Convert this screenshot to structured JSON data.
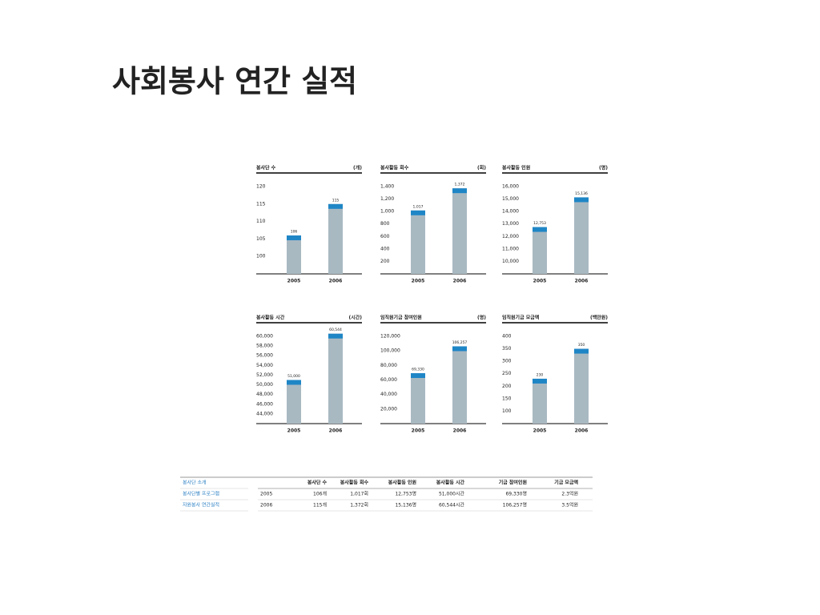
{
  "title": "사회봉사 연간 실적",
  "chart_data": [
    {
      "type": "bar",
      "title": "봉사단 수",
      "unit": "(개)",
      "categories": [
        "2005",
        "2006"
      ],
      "values": [
        106,
        115
      ],
      "ylim": [
        95,
        120
      ],
      "yticks": [
        100,
        105,
        110,
        115,
        120
      ],
      "color": "#a9b9c2",
      "cap_color": "#1f86c6"
    },
    {
      "type": "bar",
      "title": "봉사활동 회수",
      "unit": "(회)",
      "categories": [
        "2005",
        "2006"
      ],
      "values": [
        1017,
        1372
      ],
      "value_labels": [
        "1,017",
        "1,372"
      ],
      "ylim": [
        0,
        1400
      ],
      "yticks": [
        200,
        400,
        600,
        800,
        {
          "value": 1000,
          "label": "1,000"
        },
        {
          "value": 1200,
          "label": "1,200"
        },
        {
          "value": 1400,
          "label": "1,400"
        }
      ],
      "color": "#a9b9c2",
      "cap_color": "#1f86c6"
    },
    {
      "type": "bar",
      "title": "봉사활동 인원",
      "unit": "(명)",
      "categories": [
        "2005",
        "2006"
      ],
      "values": [
        12753,
        15136
      ],
      "value_labels": [
        "12,753",
        "15,136"
      ],
      "ylim": [
        9000,
        16000
      ],
      "yticks": [
        {
          "value": 10000,
          "label": "10,000"
        },
        {
          "value": 11000,
          "label": "11,000"
        },
        {
          "value": 12000,
          "label": "12,000"
        },
        {
          "value": 13000,
          "label": "13,000"
        },
        {
          "value": 14000,
          "label": "14,000"
        },
        {
          "value": 15000,
          "label": "15,000"
        },
        {
          "value": 16000,
          "label": "16,000"
        }
      ],
      "color": "#a9b9c2",
      "cap_color": "#1f86c6"
    },
    {
      "type": "bar",
      "title": "봉사활동 시간",
      "unit": "(시간)",
      "categories": [
        "2005",
        "2006"
      ],
      "values": [
        51000,
        60544
      ],
      "value_labels": [
        "51,000",
        "60,544"
      ],
      "ylim": [
        42000,
        60000
      ],
      "yticks": [
        {
          "value": 44000,
          "label": "44,000"
        },
        {
          "value": 46000,
          "label": "46,000"
        },
        {
          "value": 48000,
          "label": "48,000"
        },
        {
          "value": 50000,
          "label": "50,000"
        },
        {
          "value": 52000,
          "label": "52,000"
        },
        {
          "value": 54000,
          "label": "54,000"
        },
        {
          "value": 56000,
          "label": "56,000"
        },
        {
          "value": 58000,
          "label": "58,000"
        },
        {
          "value": 60000,
          "label": "60,000"
        }
      ],
      "color": "#a9b9c2",
      "cap_color": "#1f86c6"
    },
    {
      "type": "bar",
      "title": "임직원기금 참여인원",
      "unit": "(명)",
      "categories": [
        "2005",
        "2006"
      ],
      "values": [
        69330,
        106257
      ],
      "value_labels": [
        "69,330",
        "106,257"
      ],
      "ylim": [
        0,
        120000
      ],
      "yticks": [
        {
          "value": 20000,
          "label": "20,000"
        },
        {
          "value": 40000,
          "label": "40,000"
        },
        {
          "value": 60000,
          "label": "60,000"
        },
        {
          "value": 80000,
          "label": "80,000"
        },
        {
          "value": 100000,
          "label": "100,000"
        },
        {
          "value": 120000,
          "label": "120,000"
        }
      ],
      "color": "#a9b9c2",
      "cap_color": "#1f86c6"
    },
    {
      "type": "bar",
      "title": "임직원기금 모금액",
      "unit": "(백만원)",
      "categories": [
        "2005",
        "2006"
      ],
      "values": [
        230,
        350
      ],
      "ylim": [
        50,
        400
      ],
      "yticks": [
        100,
        150,
        200,
        250,
        300,
        350,
        400
      ],
      "color": "#a9b9c2",
      "cap_color": "#1f86c6"
    }
  ],
  "nav": [
    "봉사단 소개",
    "봉사단별 프로그램",
    "자원봉사 연간실적"
  ],
  "table": {
    "header": [
      "봉사단 수",
      "봉사활동 회수",
      "봉사활동 인원",
      "봉사활동 시간",
      "기금 참여인원",
      "기금 모금액"
    ],
    "rows": [
      [
        "2005",
        "106개",
        "1,017회",
        "12,753명",
        "51,000시간",
        "69,330명",
        "2.3억원"
      ],
      [
        "2006",
        "115개",
        "1,372회",
        "15,136명",
        "60,544시간",
        "106,257명",
        "3.5억원"
      ]
    ]
  }
}
